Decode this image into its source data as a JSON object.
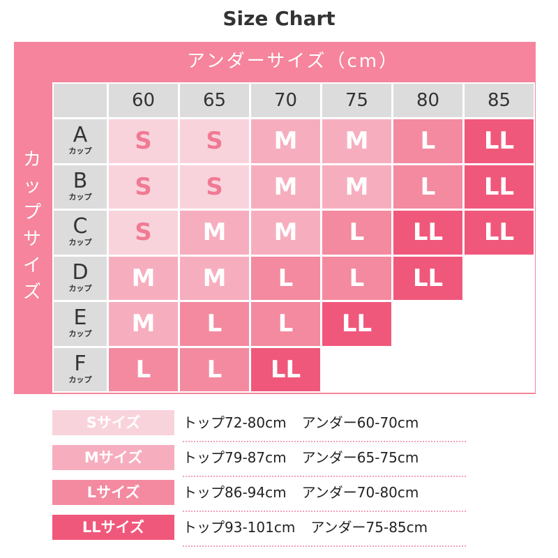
{
  "title": "Size Chart",
  "header": {
    "under_label": "アンダーサイズ（cm）",
    "cup_label": "カップサイズ"
  },
  "colors": {
    "frame": "#f5849c",
    "S": "#f9d3dc",
    "M": "#f6aebf",
    "L": "#f38aa0",
    "LL": "#f0587b",
    "header": "#dcdcdc"
  },
  "chart_data": {
    "type": "table",
    "title": "Size Chart",
    "column_header": "アンダーサイズ（cm）",
    "row_header": "カップサイズ",
    "columns": [
      "60",
      "65",
      "70",
      "75",
      "80",
      "85"
    ],
    "cup_suffix": "カップ",
    "rows": [
      {
        "cup": "A",
        "sizes": [
          "S",
          "S",
          "M",
          "M",
          "L",
          "LL"
        ]
      },
      {
        "cup": "B",
        "sizes": [
          "S",
          "S",
          "M",
          "M",
          "L",
          "LL"
        ]
      },
      {
        "cup": "C",
        "sizes": [
          "S",
          "M",
          "M",
          "L",
          "LL",
          "LL"
        ]
      },
      {
        "cup": "D",
        "sizes": [
          "M",
          "M",
          "L",
          "L",
          "LL",
          ""
        ]
      },
      {
        "cup": "E",
        "sizes": [
          "M",
          "L",
          "L",
          "LL",
          "",
          ""
        ]
      },
      {
        "cup": "F",
        "sizes": [
          "L",
          "L",
          "LL",
          "",
          "",
          ""
        ]
      }
    ]
  },
  "legend": [
    {
      "key": "S",
      "label": "Sサイズ",
      "top": "トップ72-80cm",
      "under": "アンダー60-70cm"
    },
    {
      "key": "M",
      "label": "Mサイズ",
      "top": "トップ79-87cm",
      "under": "アンダー65-75cm"
    },
    {
      "key": "L",
      "label": "Lサイズ",
      "top": "トップ86-94cm",
      "under": "アンダー70-80cm"
    },
    {
      "key": "LL",
      "label": "LLサイズ",
      "top": "トップ93-101cm",
      "under": "アンダー75-85cm"
    }
  ]
}
